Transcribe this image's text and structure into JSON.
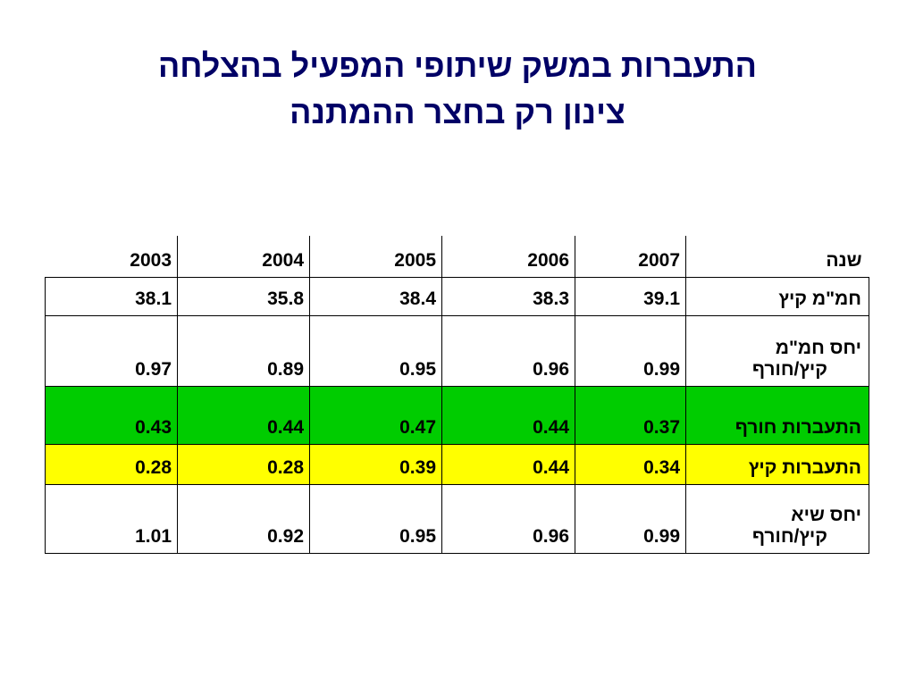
{
  "title_line1": "התעברות במשק שיתופי המפעיל בהצלחה",
  "title_line2": "צינון רק בחצר ההמתנה",
  "colors": {
    "title": "#000066",
    "winter_row": "#00cc00",
    "summer_row": "#ffff00"
  },
  "table": {
    "header": {
      "label": "שנה",
      "years": [
        "2007",
        "2006",
        "2005",
        "2004",
        "2003"
      ]
    },
    "rows": [
      {
        "label_line1": "חמ\"מ קיץ",
        "label_line2": "",
        "values": [
          "39.1",
          "38.3",
          "38.4",
          "35.8",
          "38.1"
        ]
      },
      {
        "label_line1": "יחס חמ\"מ",
        "label_line2": "קיץ/חורף",
        "values": [
          "0.99",
          "0.96",
          "0.95",
          "0.89",
          "0.97"
        ]
      },
      {
        "label_line1": "התעברות חורף",
        "label_line2": "",
        "values": [
          "0.37",
          "0.44",
          "0.47",
          "0.44",
          "0.43"
        ]
      },
      {
        "label_line1": "התעברות קיץ",
        "label_line2": "",
        "values": [
          "0.34",
          "0.44",
          "0.39",
          "0.28",
          "0.28"
        ]
      },
      {
        "label_line1": "יחס שיא",
        "label_line2": "קיץ/חורף",
        "values": [
          "0.99",
          "0.96",
          "0.95",
          "0.92",
          "1.01"
        ]
      }
    ]
  }
}
